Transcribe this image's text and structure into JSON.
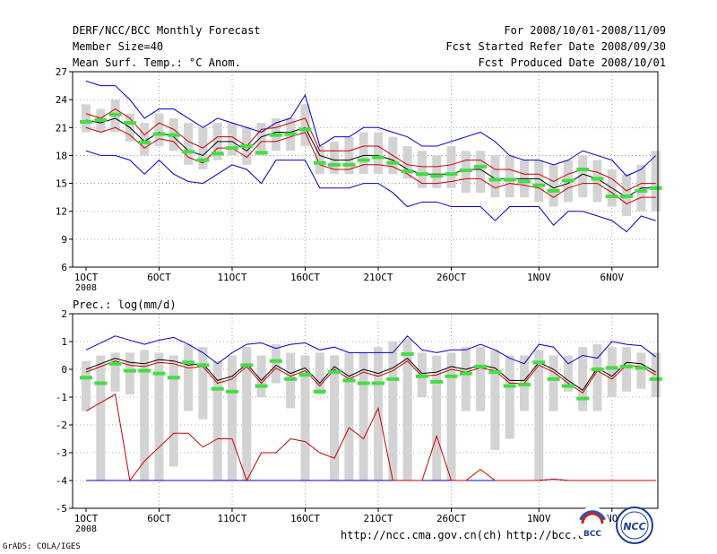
{
  "header": {
    "title": "DERF/NCC/BCC Monthly Forecast",
    "member_size": "Member Size=40",
    "variable": "Mean Surf. Temp.: °C Anom.",
    "period": "For 2008/10/01-2008/11/09",
    "started": "Fcst Started Refer Date 2008/09/30",
    "produced": "Fcst Produced Date 2008/10/01"
  },
  "footer": {
    "url1": "http://ncc.cma.gov.cn(ch)",
    "url2": "http://bcc.c",
    "grads": "GrADS: COLA/IGES",
    "logo1_text": "BCC",
    "logo2_text": "NCC"
  },
  "colors": {
    "box": "#d3d3d3",
    "mean": "#000000",
    "spread": "#cc0000",
    "envelope": "#0000cc",
    "observed": "#44dd44",
    "grid": "#888888"
  },
  "chart_data": [
    {
      "type": "line",
      "title": "",
      "ylabel": "",
      "x_ticks": [
        "1OCT",
        "6OCT",
        "11OCT",
        "16OCT",
        "21OCT",
        "26OCT",
        "1NOV",
        "6NOV"
      ],
      "x_tick_index": [
        0,
        5,
        10,
        15,
        20,
        25,
        31,
        36
      ],
      "year_label": "2008",
      "ylim": [
        6,
        27
      ],
      "yticks": [
        6,
        9,
        12,
        15,
        18,
        21,
        24,
        27
      ],
      "n": 40,
      "box_low": [
        20.5,
        20.5,
        20.5,
        19.5,
        18,
        19,
        18.5,
        17,
        16.5,
        17.5,
        18,
        17,
        18,
        18.5,
        18.5,
        19,
        16,
        16,
        16,
        16,
        16,
        16,
        15.5,
        14.5,
        14.5,
        14.5,
        14,
        14,
        13.5,
        13.5,
        13.5,
        13,
        12.5,
        13,
        13.5,
        13,
        12.5,
        11.5,
        12,
        12
      ],
      "box_high": [
        23.5,
        23,
        24,
        22.5,
        21.5,
        22.5,
        22,
        21.5,
        21,
        21.5,
        21.5,
        21,
        21.5,
        22,
        22,
        23.5,
        19,
        19.5,
        20,
        20.5,
        20.5,
        20,
        19,
        18.5,
        18,
        19,
        18.5,
        18.5,
        18,
        18,
        17.5,
        17.5,
        17,
        17.5,
        18,
        17.5,
        16.5,
        16,
        17,
        18.5
      ],
      "upper_env": [
        26,
        25.5,
        25.5,
        24,
        22,
        23,
        23,
        22,
        21,
        22,
        21.5,
        21,
        20.5,
        21.5,
        22,
        24.5,
        19,
        20,
        20,
        21,
        21,
        20.5,
        20,
        19,
        19,
        19.5,
        20,
        20.5,
        19.5,
        18,
        17.5,
        17.5,
        17,
        17.5,
        18.5,
        18,
        17.5,
        15.8,
        16.5,
        18
      ],
      "lower_env": [
        18.5,
        18,
        18,
        17.5,
        16,
        17.5,
        16,
        15.2,
        15,
        16,
        17,
        16.5,
        15,
        17.5,
        17.5,
        17.5,
        14.5,
        14.5,
        14.5,
        15,
        15,
        14,
        12.5,
        13,
        13,
        12.5,
        12.5,
        12.5,
        11,
        12.5,
        12.5,
        12.5,
        10.5,
        12,
        12,
        11.5,
        11,
        9.8,
        11.5,
        11
      ],
      "mean": [
        21.8,
        21.5,
        22,
        21,
        19.5,
        20.5,
        20,
        18.5,
        18,
        19.5,
        19.5,
        18.5,
        20,
        20.5,
        20.5,
        21,
        18,
        17.5,
        17.5,
        18,
        18,
        17.5,
        16.5,
        16,
        16,
        16,
        16.5,
        16.5,
        15.5,
        15.5,
        15.5,
        15.5,
        14.5,
        15,
        16,
        15.5,
        14.5,
        13.5,
        14.5,
        14.5
      ],
      "upper_spread": [
        22.5,
        22,
        23,
        22,
        20.2,
        21.5,
        20.8,
        19.5,
        18.8,
        20,
        20,
        19,
        20.8,
        21,
        21.5,
        22,
        18.5,
        18.5,
        18.5,
        19,
        19,
        18,
        17,
        16.8,
        16.8,
        17,
        17.5,
        17.5,
        16.5,
        16.5,
        16,
        16,
        15.2,
        16,
        16.5,
        16.2,
        15.5,
        14.2,
        15,
        15
      ],
      "lower_spread": [
        21,
        20.5,
        21,
        20.2,
        18.8,
        19.8,
        19.5,
        17.8,
        17.2,
        18.8,
        18.8,
        17.8,
        19.5,
        19.5,
        20,
        20.5,
        17,
        16.5,
        16.5,
        17,
        17,
        16.8,
        16,
        15,
        15,
        15.2,
        15.5,
        15.5,
        14.5,
        15,
        14.8,
        14.5,
        13.5,
        14.5,
        15,
        15,
        14,
        12.8,
        13.5,
        13.5
      ],
      "observed": [
        21.6,
        21.8,
        22.4,
        21.5,
        19.4,
        20.3,
        20.2,
        18.4,
        17.5,
        18.2,
        18.8,
        19,
        18.3,
        20.2,
        20.3,
        20.8,
        17.2,
        17,
        17,
        17.5,
        17.8,
        17.2,
        16.3,
        16,
        15.8,
        16,
        16.4,
        16.8,
        15.4,
        15.4,
        15.2,
        14.8,
        14.2,
        15.3,
        16.5,
        15.5,
        13.6,
        13.6,
        14.2,
        14.5
      ]
    },
    {
      "type": "line",
      "title": "Prec.: log(mm/d)",
      "ylabel": "",
      "x_ticks": [
        "1OCT",
        "6OCT",
        "11OCT",
        "16OCT",
        "21OCT",
        "26OCT",
        "1NOV",
        "6NOV"
      ],
      "x_tick_index": [
        0,
        5,
        10,
        15,
        20,
        25,
        31,
        36
      ],
      "year_label": "2008",
      "ylim": [
        -5,
        2
      ],
      "yticks": [
        -5,
        -4,
        -3,
        -2,
        -1,
        0,
        1,
        2
      ],
      "n": 40,
      "box_low": [
        -1.5,
        -4,
        -0.8,
        -0.9,
        -4,
        -4,
        -3.5,
        -1.5,
        -1.8,
        -4,
        -4,
        -4,
        -1,
        -0.5,
        -1.4,
        -4,
        -0.9,
        -4,
        -4,
        -4,
        -4,
        -4,
        -4,
        -1,
        -4,
        -4,
        -1.5,
        -1.5,
        -2.9,
        -2.5,
        -1.5,
        -4,
        -1.5,
        -0.8,
        -1.5,
        -1.5,
        -1,
        -0.8,
        -0.7,
        -1
      ],
      "box_high": [
        0.3,
        0.5,
        0.6,
        0.6,
        0.7,
        0.6,
        0.5,
        0.9,
        0.8,
        0.3,
        0.5,
        0.8,
        0.5,
        0.9,
        0.6,
        0.5,
        0.6,
        0.5,
        0.6,
        0.6,
        0.8,
        1,
        1.1,
        0.6,
        0.5,
        0.6,
        0.8,
        0.8,
        0.7,
        0.5,
        0.5,
        0.7,
        0.5,
        0.5,
        0.8,
        0.9,
        0.8,
        0.8,
        0.6,
        0.6
      ],
      "upper_env": [
        0.7,
        0.95,
        1.2,
        1.05,
        0.9,
        1.05,
        1.15,
        0.9,
        0.6,
        0.2,
        0.6,
        0.9,
        0.95,
        0.75,
        0.9,
        0.95,
        0.7,
        0.8,
        0.6,
        0.6,
        0.6,
        0.6,
        1.2,
        0.7,
        0.6,
        0.7,
        0.7,
        0.9,
        0.7,
        0.4,
        0.2,
        0.9,
        0.8,
        0.2,
        0.5,
        0.4,
        1,
        0.9,
        0.85,
        0.45
      ],
      "lower_env": [
        -4,
        -4,
        -4,
        -4,
        -4,
        -4,
        -4,
        -4,
        -4,
        -4,
        -4,
        -4,
        -4,
        -4,
        -4,
        -4,
        -4,
        -4,
        -4,
        -4,
        -4,
        -4,
        -4,
        -4,
        -4,
        -4,
        -4,
        -4,
        -4,
        -4,
        -4,
        -4,
        -3.95,
        -4,
        -4,
        -4,
        -4,
        -4,
        -4,
        -4
      ],
      "mean": [
        0,
        0.2,
        0.4,
        0.25,
        0.2,
        0.35,
        0.3,
        0.15,
        0.2,
        -0.4,
        -0.25,
        0.2,
        -0.4,
        0.15,
        -0.15,
        0.05,
        -0.5,
        0.1,
        -0.25,
        0,
        -0.15,
        0.05,
        0.4,
        -0.15,
        -0.1,
        0.1,
        0,
        0.15,
        0.05,
        -0.4,
        -0.4,
        0.25,
        0,
        -0.4,
        -0.75,
        0.05,
        -0.25,
        0.25,
        0.2,
        -0.1
      ],
      "upper_spread": [
        -0.1,
        0.1,
        0.3,
        0.15,
        0.1,
        0.25,
        0.2,
        0.05,
        0.1,
        -0.5,
        -0.35,
        0.1,
        -0.5,
        0.05,
        -0.25,
        -0.05,
        -0.6,
        0,
        -0.35,
        -0.1,
        -0.25,
        -0.05,
        0.3,
        -0.25,
        -0.2,
        0,
        -0.1,
        0.05,
        -0.05,
        -0.5,
        -0.5,
        0.15,
        -0.1,
        -0.5,
        -0.85,
        -0.05,
        -0.35,
        0.15,
        0.1,
        -0.2
      ],
      "lower_spread": [
        -1.5,
        -1.2,
        -0.9,
        -4,
        -3.3,
        -2.8,
        -2.3,
        -2.3,
        -2.8,
        -2.5,
        -2.5,
        -4,
        -3,
        -3,
        -2.5,
        -2.6,
        -3,
        -3.2,
        -2.1,
        -2.5,
        -1.4,
        -4,
        -4,
        -4,
        -2.4,
        -4,
        -4,
        -3.6,
        -4,
        -4,
        -4,
        -4,
        -3.95,
        -4,
        -4,
        -4,
        -4,
        -4,
        -4,
        -4
      ],
      "observed": [
        -0.3,
        -0.5,
        0.2,
        -0.05,
        -0.05,
        -0.15,
        -0.3,
        0.25,
        0.15,
        -0.7,
        -0.8,
        0.15,
        -0.6,
        0.3,
        -0.35,
        -0.2,
        -0.8,
        -0.1,
        -0.4,
        -0.5,
        -0.5,
        -0.35,
        0.55,
        -0.25,
        -0.45,
        -0.25,
        -0.15,
        0.1,
        -0.1,
        -0.6,
        -0.55,
        0.25,
        -0.35,
        -0.6,
        -1.05,
        0,
        0.05,
        0.1,
        0.05,
        -0.35
      ]
    }
  ]
}
